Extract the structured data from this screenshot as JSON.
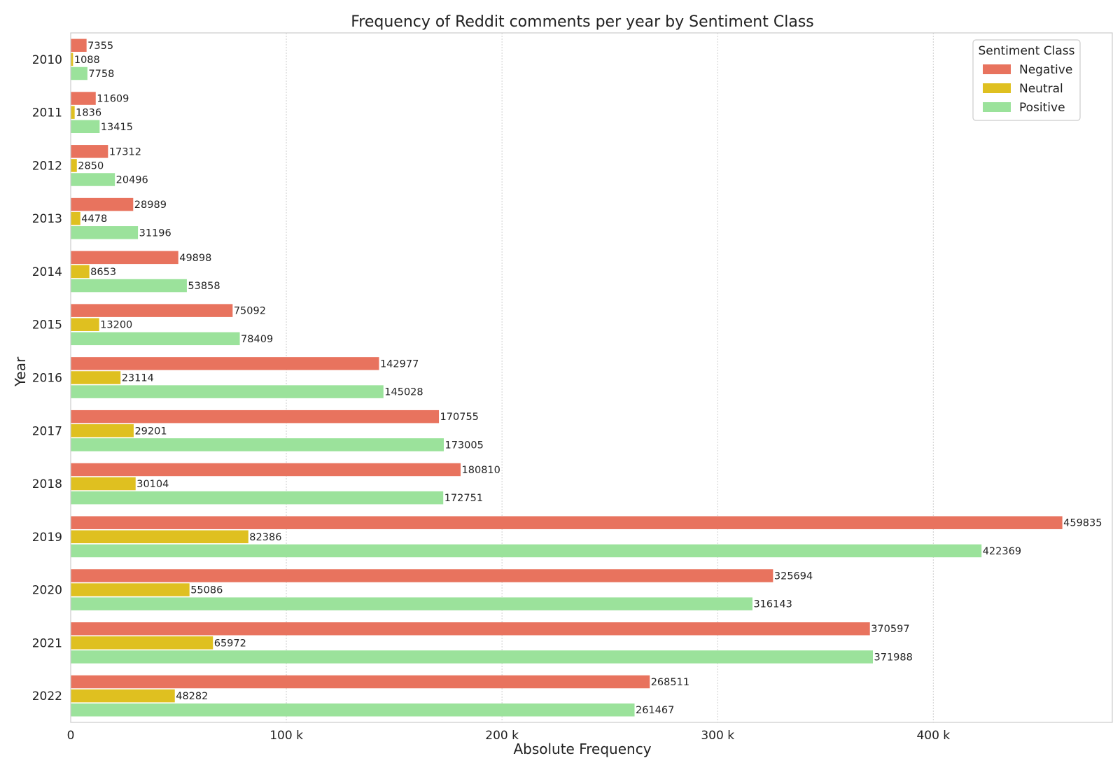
{
  "chart_data": {
    "type": "bar",
    "orientation": "horizontal",
    "title": "Frequency of Reddit comments per year by Sentiment Class",
    "xlabel": "Absolute Frequency",
    "ylabel": "Year",
    "categories": [
      "2010",
      "2011",
      "2012",
      "2013",
      "2014",
      "2015",
      "2016",
      "2017",
      "2018",
      "2019",
      "2020",
      "2021",
      "2022"
    ],
    "series": [
      {
        "name": "Negative",
        "color": "#e8735e",
        "values": [
          7355,
          11609,
          17312,
          28989,
          49898,
          75092,
          142977,
          170755,
          180810,
          459835,
          325694,
          370597,
          268511
        ]
      },
      {
        "name": "Neutral",
        "color": "#dfc020",
        "values": [
          1088,
          1836,
          2850,
          4478,
          8653,
          13200,
          23114,
          29201,
          30104,
          82386,
          55086,
          65972,
          48282
        ]
      },
      {
        "name": "Positive",
        "color": "#9be29b",
        "values": [
          7758,
          13415,
          20496,
          31196,
          53858,
          78409,
          145028,
          173005,
          172751,
          422369,
          316143,
          371988,
          261467
        ]
      }
    ],
    "xlim": [
      0,
      483000
    ],
    "xticks": [
      0,
      100000,
      200000,
      300000,
      400000
    ],
    "xtick_labels": [
      "0",
      "100 k",
      "200 k",
      "300 k",
      "400 k"
    ],
    "grid": "x",
    "legend": {
      "title": "Sentiment Class",
      "placement": "top-right"
    }
  }
}
